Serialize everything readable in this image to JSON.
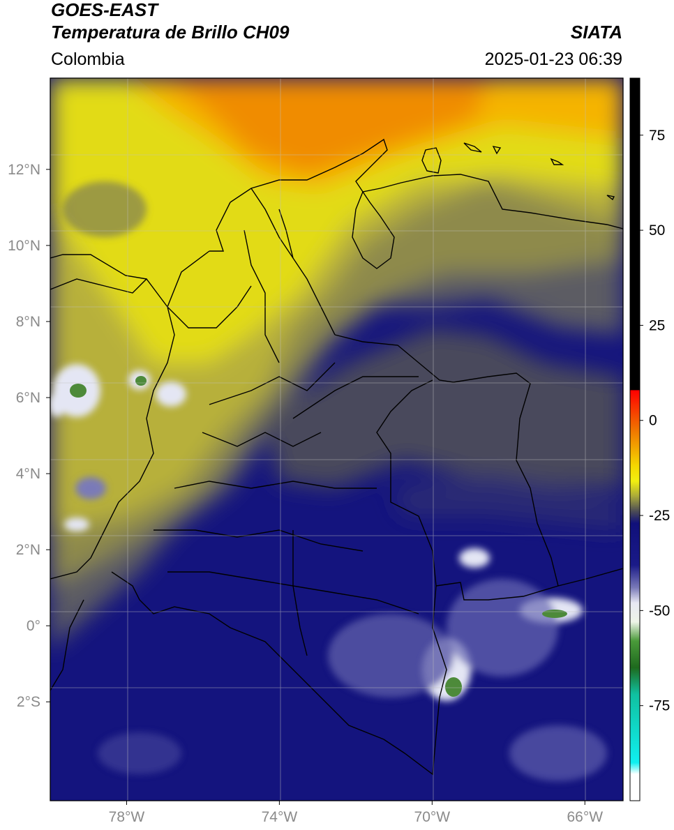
{
  "header": {
    "satellite": "GOES-EAST",
    "product": "Temperatura de Brillo CH09",
    "brand": "SIATA",
    "region": "Colombia",
    "datetime": "2025-01-23 06:39"
  },
  "map": {
    "lon_range": [
      -80,
      -65
    ],
    "lat_range": [
      -4.6,
      14.4
    ],
    "lat_ticks": [
      {
        "value": 12,
        "label": "12°N"
      },
      {
        "value": 10,
        "label": "10°N"
      },
      {
        "value": 8,
        "label": "8°N"
      },
      {
        "value": 6,
        "label": "6°N"
      },
      {
        "value": 4,
        "label": "4°N"
      },
      {
        "value": 2,
        "label": "2°N"
      },
      {
        "value": 0,
        "label": "0°"
      },
      {
        "value": -2,
        "label": "2°S"
      }
    ],
    "lon_ticks": [
      {
        "value": -78,
        "label": "78°W"
      },
      {
        "value": -74,
        "label": "74°W"
      },
      {
        "value": -70,
        "label": "70°W"
      },
      {
        "value": -66,
        "label": "66°W"
      }
    ],
    "colors": {
      "warm_top": "#f59000",
      "yellow": "#f3e810",
      "olive": "#b9b23a",
      "gray": "#5a5a66",
      "navy": "#14147e",
      "white_cloud": "#e6e8f4",
      "green_core": "#4d8a3a"
    }
  },
  "colorbar": {
    "range": [
      -100,
      90
    ],
    "ticks": [
      {
        "value": 75,
        "label": "75"
      },
      {
        "value": 50,
        "label": "50"
      },
      {
        "value": 25,
        "label": "25"
      },
      {
        "value": 0,
        "label": "0"
      },
      {
        "value": -25,
        "label": "-25"
      },
      {
        "value": -50,
        "label": "-50"
      },
      {
        "value": -75,
        "label": "-75"
      }
    ],
    "stops": [
      {
        "value": 90,
        "color": "#000000"
      },
      {
        "value": 8,
        "color": "#000000"
      },
      {
        "value": 7.9,
        "color": "#ff0000"
      },
      {
        "value": -3,
        "color": "#f07a00"
      },
      {
        "value": -12,
        "color": "#f5d800"
      },
      {
        "value": -16,
        "color": "#f2ef10"
      },
      {
        "value": -20,
        "color": "#a8a83a"
      },
      {
        "value": -24,
        "color": "#4a4a56"
      },
      {
        "value": -27,
        "color": "#10107a"
      },
      {
        "value": -38,
        "color": "#1a1a88"
      },
      {
        "value": -44,
        "color": "#7a7ab8"
      },
      {
        "value": -48,
        "color": "#e8e8f4"
      },
      {
        "value": -53,
        "color": "#eef4e8"
      },
      {
        "value": -58,
        "color": "#4a9a3a"
      },
      {
        "value": -65,
        "color": "#1e6a1e"
      },
      {
        "value": -72,
        "color": "#10c0a0"
      },
      {
        "value": -90,
        "color": "#10f0f0"
      },
      {
        "value": -93,
        "color": "#ffffff"
      },
      {
        "value": -100,
        "color": "#ffffff"
      }
    ]
  }
}
